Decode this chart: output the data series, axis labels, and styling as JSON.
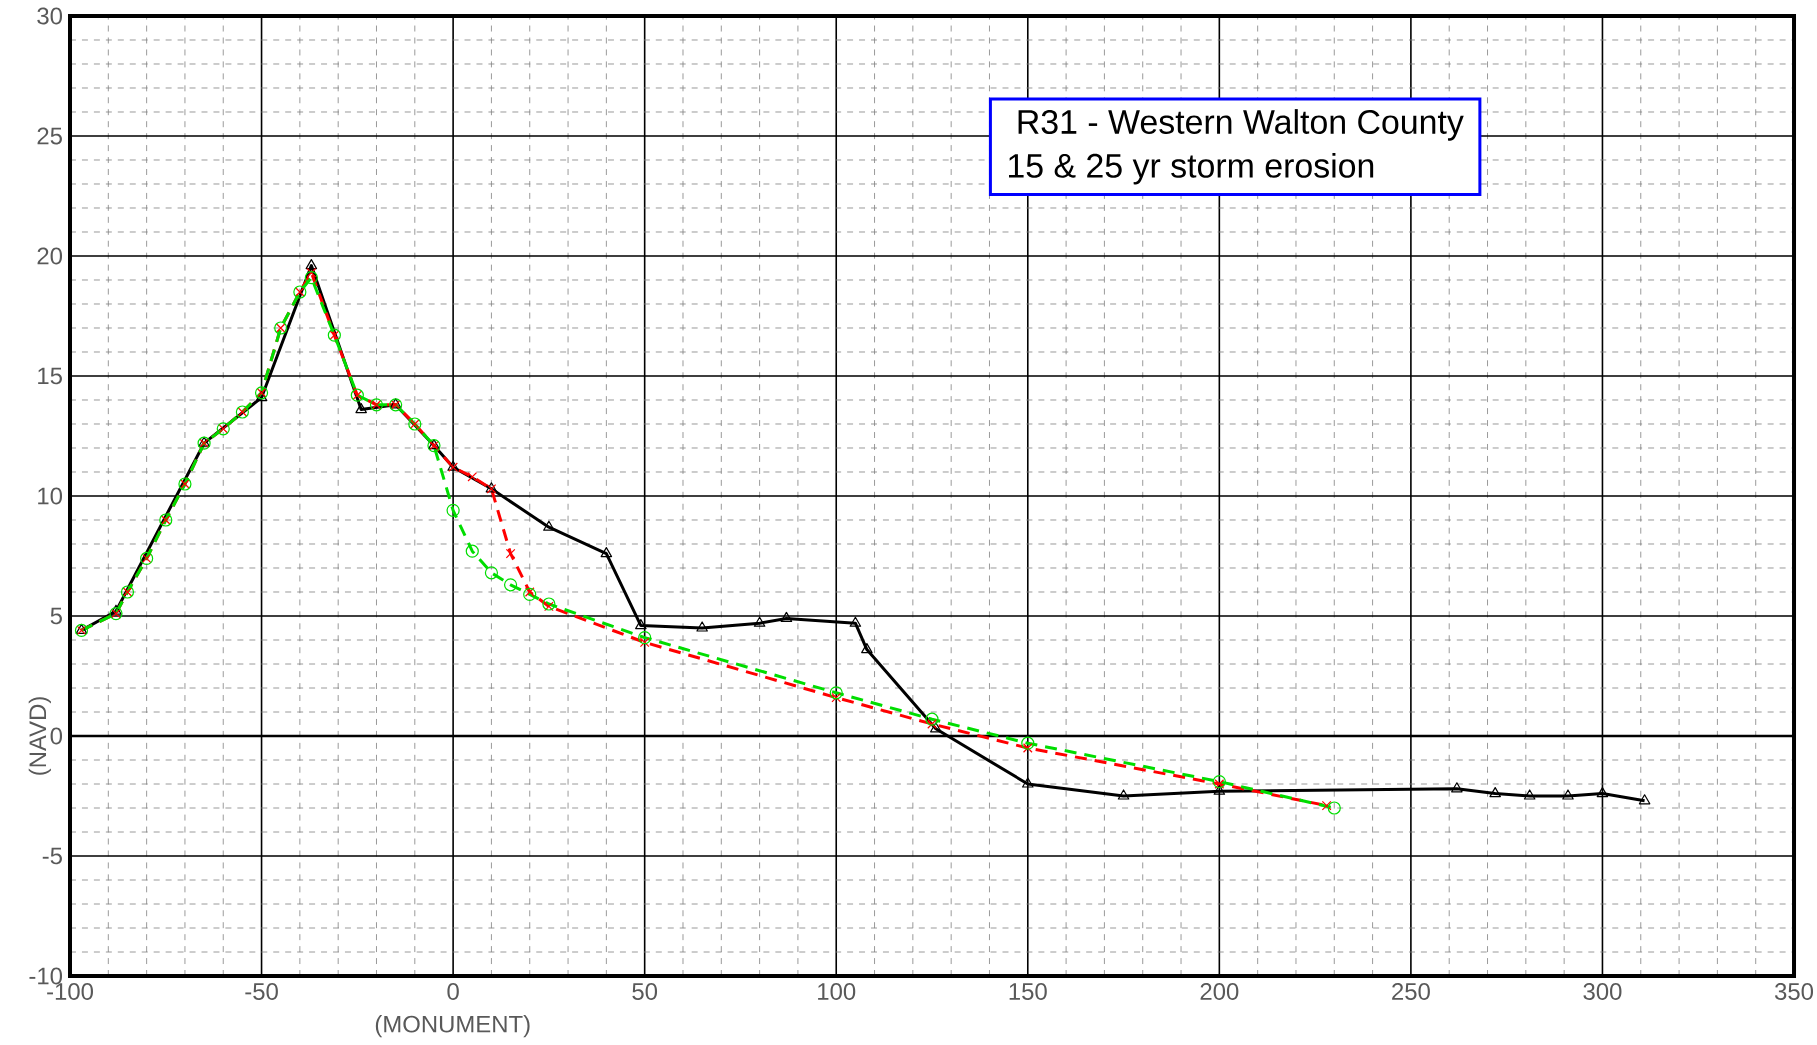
{
  "chart_data": {
    "type": "line",
    "xlabel": "(MONUMENT)",
    "ylabel": "(NAVD)",
    "annotations": [
      " R31  -  Western Walton County",
      "15 & 25 yr storm erosion"
    ],
    "xlim": [
      -100,
      350
    ],
    "xticks": [
      -100,
      -50,
      0,
      50,
      100,
      150,
      200,
      250,
      300,
      350
    ],
    "ylim": [
      -10,
      30
    ],
    "yticks": [
      -10,
      -5,
      0,
      5,
      10,
      15,
      20,
      25,
      30
    ],
    "grid": true,
    "ref_lines": [
      {
        "axis": "y",
        "value": 0,
        "color": "#000000"
      }
    ],
    "series": [
      {
        "color": "#000000",
        "marker": "triangle",
        "line_style": "solid",
        "x": [
          -97,
          -88,
          -65,
          -50,
          -37,
          -24,
          -15,
          -5,
          0,
          10,
          25,
          40,
          49,
          65,
          80,
          87,
          105,
          108,
          126,
          150,
          175,
          200,
          262,
          272,
          281,
          291,
          300,
          311
        ],
        "values": [
          4.4,
          5.2,
          12.2,
          14.1,
          19.6,
          13.6,
          13.8,
          12.1,
          11.2,
          10.3,
          8.7,
          7.6,
          4.6,
          4.5,
          4.7,
          4.9,
          4.7,
          3.6,
          0.3,
          -2.0,
          -2.5,
          -2.3,
          -2.2,
          -2.4,
          -2.5,
          -2.5,
          -2.4,
          -2.7
        ]
      },
      {
        "color": "#ff0000",
        "marker": "cross",
        "line_style": "dashed",
        "x": [
          -97,
          -88,
          -85,
          -80,
          -75,
          -70,
          -65,
          -60,
          -55,
          -50,
          -45,
          -40,
          -37,
          -31,
          -25,
          -20,
          -15,
          -10,
          -5,
          0,
          5,
          10,
          15,
          20,
          25,
          50,
          100,
          125,
          150,
          200,
          228
        ],
        "values": [
          4.4,
          5.1,
          6.0,
          7.4,
          9.0,
          10.5,
          12.2,
          12.8,
          13.5,
          14.3,
          17.0,
          18.5,
          19.3,
          16.7,
          14.2,
          13.8,
          13.8,
          13.0,
          12.1,
          11.2,
          10.8,
          10.3,
          7.6,
          6.0,
          5.4,
          3.9,
          1.6,
          0.5,
          -0.5,
          -2.0,
          -2.9
        ]
      },
      {
        "color": "#00dd00",
        "marker": "circle",
        "line_style": "dashed",
        "x": [
          -97,
          -88,
          -85,
          -80,
          -75,
          -70,
          -65,
          -60,
          -55,
          -50,
          -45,
          -40,
          -37,
          -31,
          -25,
          -20,
          -15,
          -10,
          -5,
          0,
          5,
          10,
          15,
          20,
          25,
          50,
          100,
          125,
          150,
          200,
          230
        ],
        "values": [
          4.4,
          5.1,
          6.0,
          7.4,
          9.0,
          10.5,
          12.2,
          12.8,
          13.5,
          14.3,
          17.0,
          18.5,
          19.1,
          16.7,
          14.2,
          13.8,
          13.8,
          13.0,
          12.1,
          9.4,
          7.7,
          6.8,
          6.3,
          5.9,
          5.5,
          4.1,
          1.8,
          0.7,
          -0.3,
          -1.9,
          -3.0
        ]
      }
    ]
  }
}
